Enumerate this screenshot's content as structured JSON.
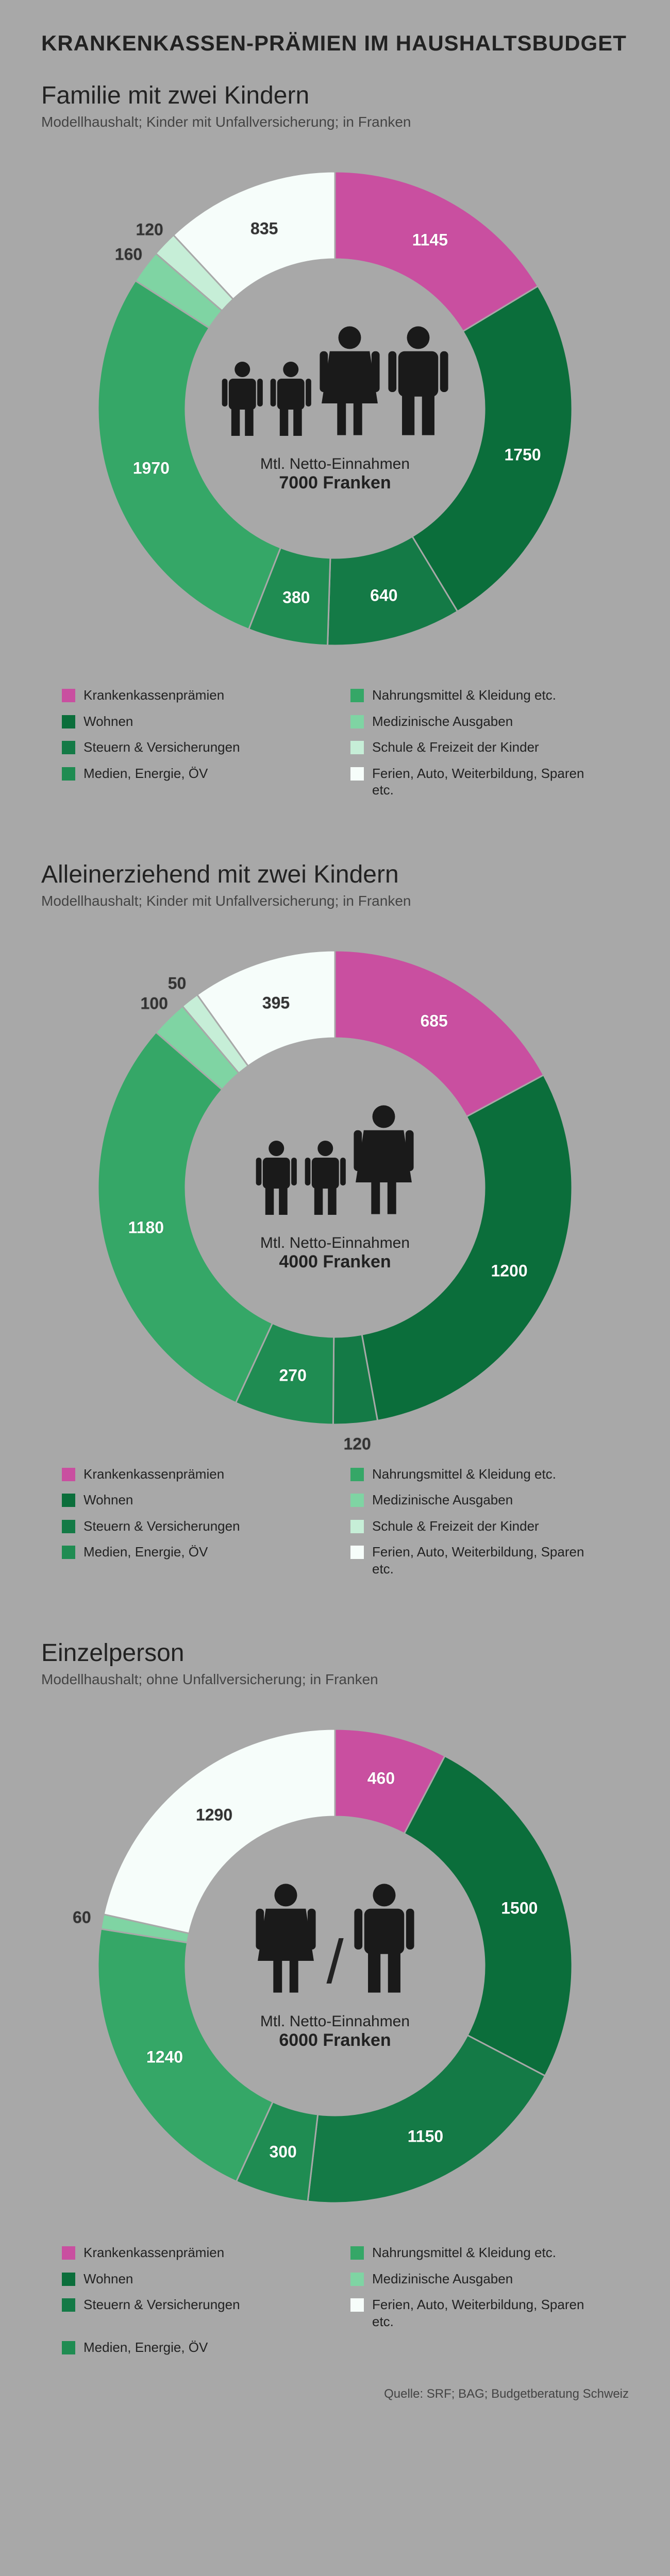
{
  "colors": {
    "bg": "#a8a8a8",
    "c1": "#c94fa0",
    "c2": "#0b6e3b",
    "c3": "#147a46",
    "c4": "#1f8c52",
    "c5": "#35a767",
    "c6": "#7fd4a3",
    "c7": "#c6eed7",
    "c8": "#f6fdfa",
    "icon": "#1a1a1a"
  },
  "title": "KRANKENKASSEN-PRÄMIEN IM HAUSHALTSBUDGET",
  "source": "Quelle: SRF; BAG; Budgetberatung Schweiz",
  "legend_labels": {
    "l1": "Krankenkassenprämien",
    "l2": "Wohnen",
    "l3": "Steuern & Versicherungen",
    "l4": "Medien, Energie, ÖV",
    "l5": "Nahrungsmittel & Kleidung etc.",
    "l6": "Medizinische Ausgaben",
    "l7": "Schule & Freizeit der Kinder",
    "l8": "Ferien, Auto, Weiterbildung, Sparen etc."
  },
  "sections": [
    {
      "title": "Familie mit zwei Kindern",
      "sub": "Modellhaushalt; Kinder mit Unfallversicherung; in Franken",
      "center_label": "Mtl. Netto-Einnahmen",
      "center_value": "7000 Franken",
      "icons": [
        "child",
        "child",
        "woman",
        "man"
      ],
      "segments": [
        {
          "label": "1145",
          "value": 1145,
          "color": "c1"
        },
        {
          "label": "1750",
          "value": 1750,
          "color": "c2"
        },
        {
          "label": "640",
          "value": 640,
          "color": "c3"
        },
        {
          "label": "380",
          "value": 380,
          "color": "c4"
        },
        {
          "label": "1970",
          "value": 1970,
          "color": "c5"
        },
        {
          "label": "160",
          "value": 160,
          "color": "c6"
        },
        {
          "label": "120",
          "value": 120,
          "color": "c7"
        },
        {
          "label": "835",
          "value": 835,
          "color": "c8"
        }
      ],
      "legend_order": [
        "l1",
        "l5",
        "l2",
        "l6",
        "l3",
        "l7",
        "l4",
        "l8"
      ],
      "legend_colors": {
        "l1": "c1",
        "l2": "c2",
        "l3": "c3",
        "l4": "c4",
        "l5": "c5",
        "l6": "c6",
        "l7": "c7",
        "l8": "c8"
      }
    },
    {
      "title": "Alleinerziehend mit zwei Kindern",
      "sub": "Modellhaushalt; Kinder mit Unfallversicherung; in Franken",
      "center_label": "Mtl. Netto-Einnahmen",
      "center_value": "4000 Franken",
      "icons": [
        "child",
        "child",
        "woman"
      ],
      "segments": [
        {
          "label": "685",
          "value": 685,
          "color": "c1"
        },
        {
          "label": "1200",
          "value": 1200,
          "color": "c2"
        },
        {
          "label": "120",
          "value": 120,
          "color": "c3"
        },
        {
          "label": "270",
          "value": 270,
          "color": "c4"
        },
        {
          "label": "1180",
          "value": 1180,
          "color": "c5"
        },
        {
          "label": "100",
          "value": 100,
          "color": "c6"
        },
        {
          "label": "50",
          "value": 50,
          "color": "c7"
        },
        {
          "label": "395",
          "value": 395,
          "color": "c8"
        }
      ],
      "legend_order": [
        "l1",
        "l5",
        "l2",
        "l6",
        "l3",
        "l7",
        "l4",
        "l8"
      ],
      "legend_colors": {
        "l1": "c1",
        "l2": "c2",
        "l3": "c3",
        "l4": "c4",
        "l5": "c5",
        "l6": "c6",
        "l7": "c7",
        "l8": "c8"
      }
    },
    {
      "title": "Einzelperson",
      "sub": "Modellhaushalt; ohne Unfallversicherung; in Franken",
      "center_label": "Mtl. Netto-Einnahmen",
      "center_value": "6000 Franken",
      "icons": [
        "woman",
        "slash",
        "man"
      ],
      "segments": [
        {
          "label": "460",
          "value": 460,
          "color": "c1"
        },
        {
          "label": "1500",
          "value": 1500,
          "color": "c2"
        },
        {
          "label": "1150",
          "value": 1150,
          "color": "c3"
        },
        {
          "label": "300",
          "value": 300,
          "color": "c4"
        },
        {
          "label": "1240",
          "value": 1240,
          "color": "c5"
        },
        {
          "label": "60",
          "value": 60,
          "color": "c6"
        },
        {
          "label": "1290",
          "value": 1290,
          "color": "c8"
        }
      ],
      "legend_order": [
        "l1",
        "l5",
        "l2",
        "l6",
        "l3",
        "l8",
        "l4"
      ],
      "legend_colors": {
        "l1": "c1",
        "l2": "c2",
        "l3": "c3",
        "l4": "c4",
        "l5": "c5",
        "l6": "c6",
        "l8": "c8"
      }
    }
  ],
  "chart_style": {
    "outerR": 460,
    "innerR": 290,
    "labelR": 375,
    "outsideR": 500,
    "stroke": "#a8a8a8",
    "strokeW": 3,
    "fontSize": 32
  }
}
